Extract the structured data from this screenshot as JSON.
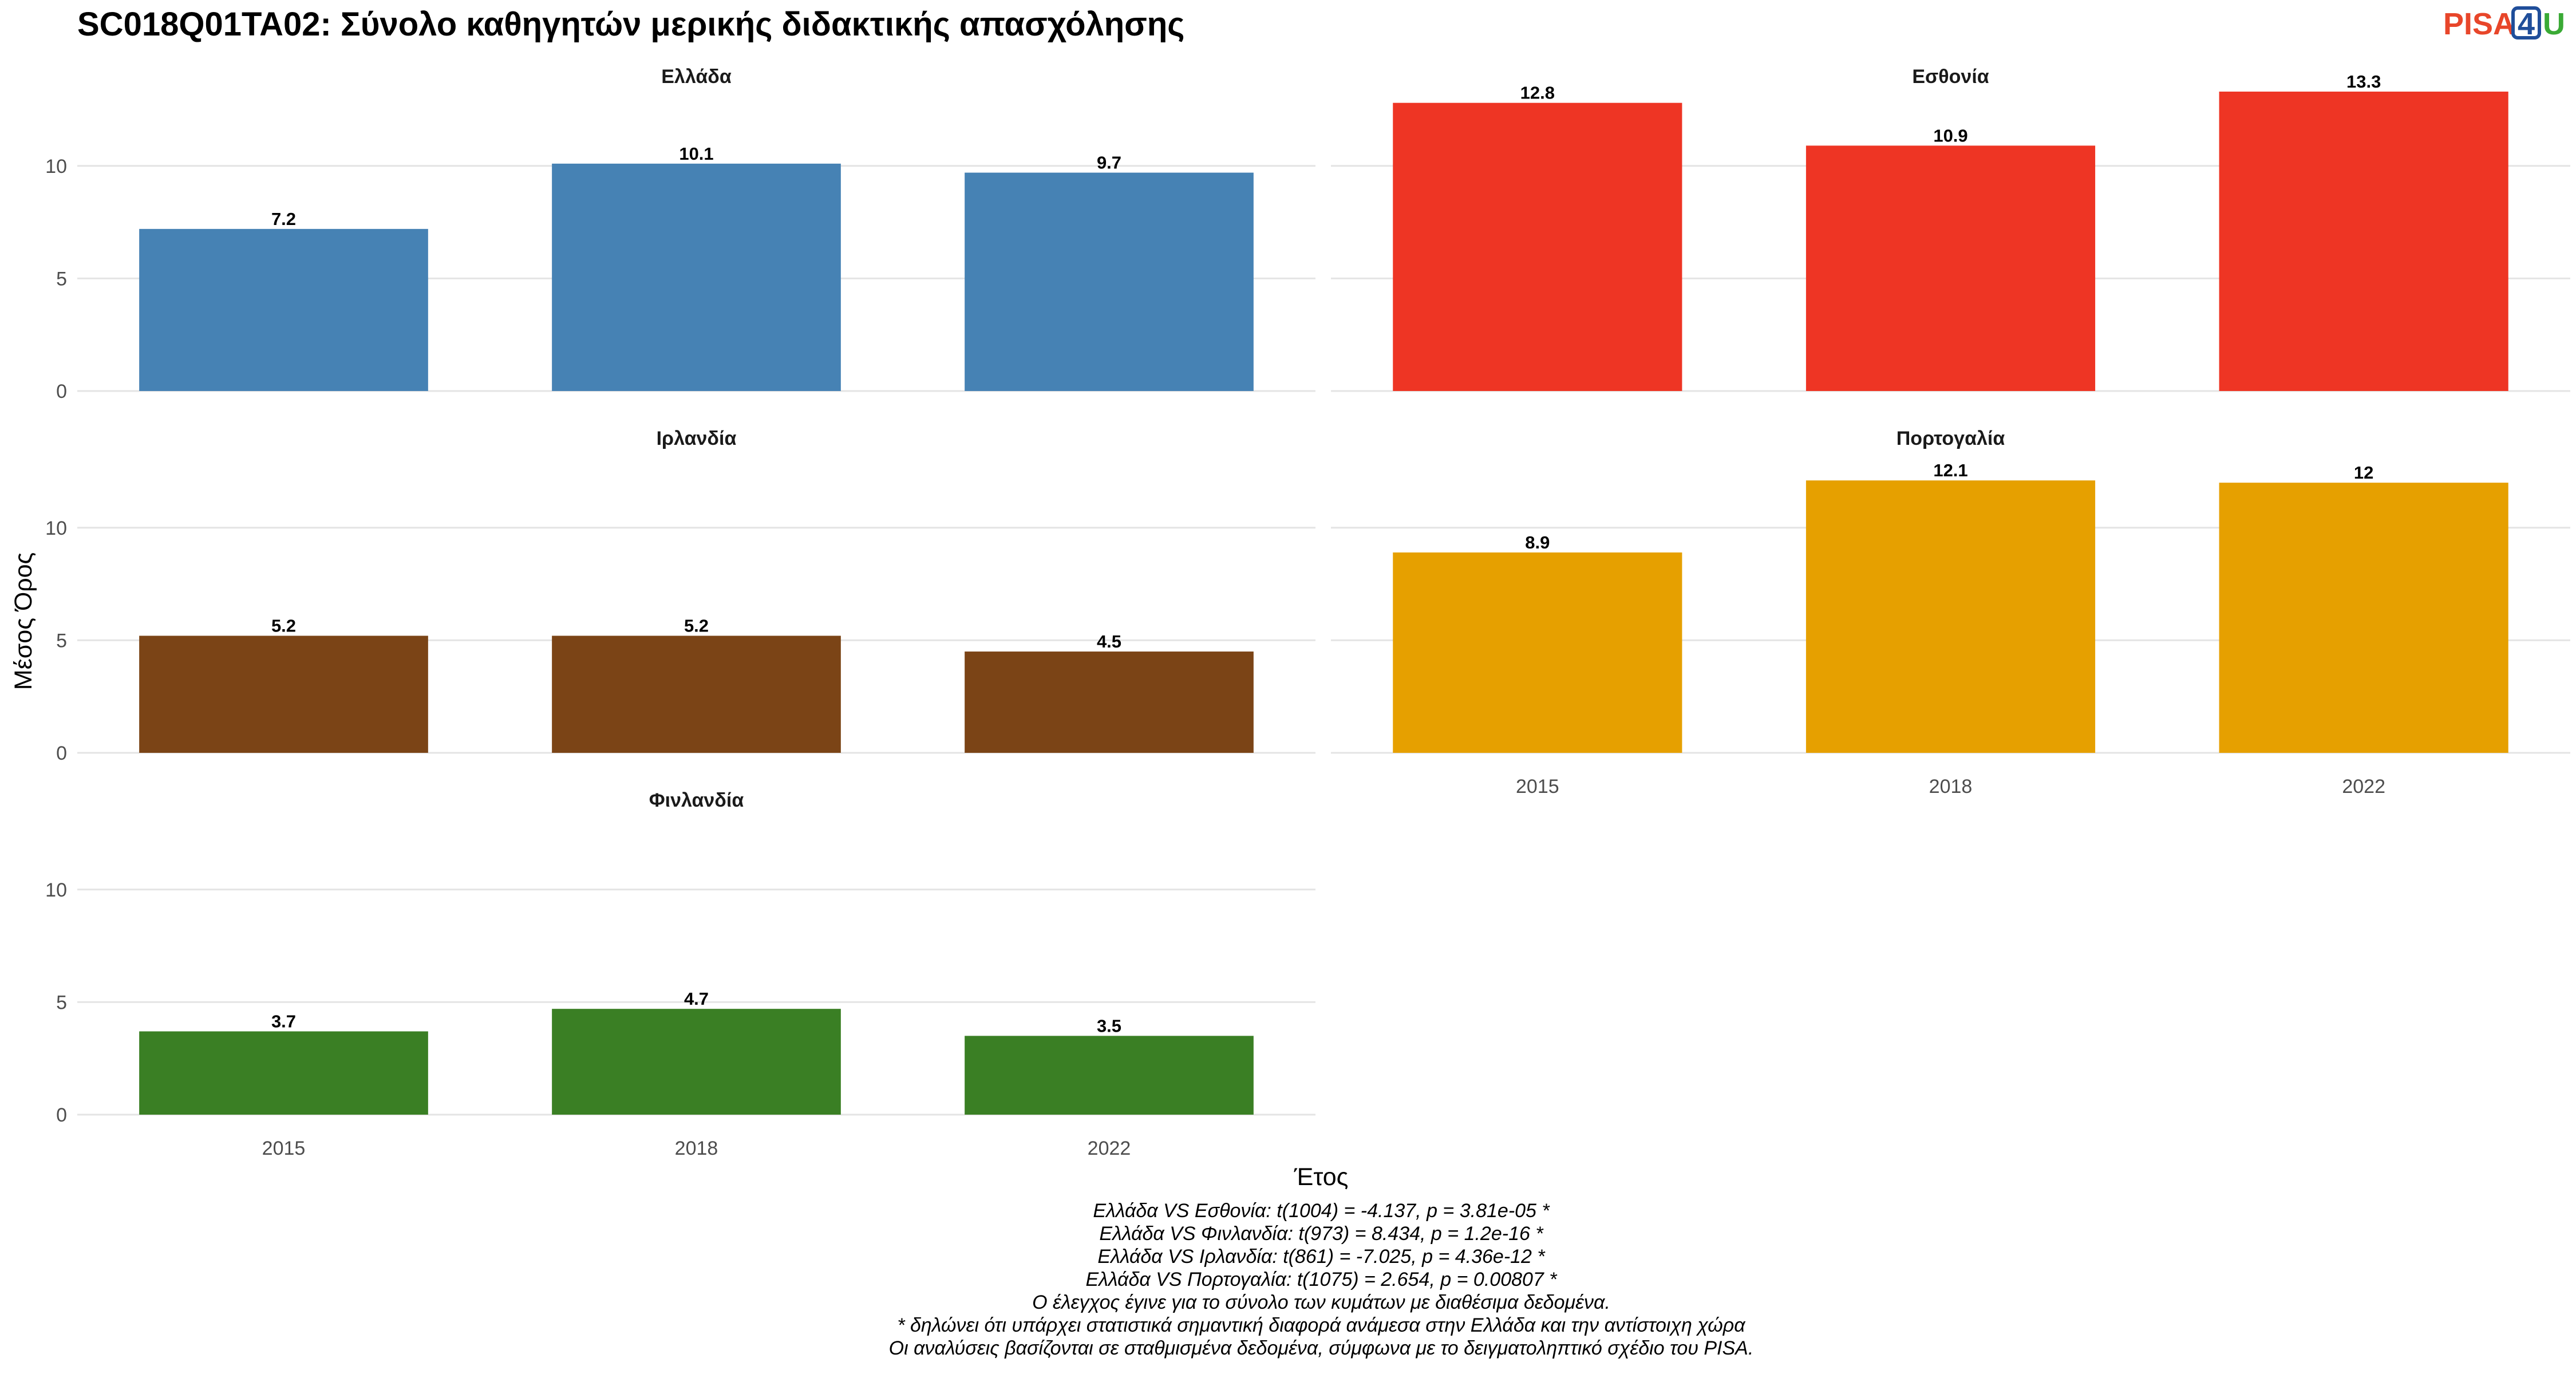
{
  "chart_data": {
    "type": "bar",
    "title": "SC018Q01TA02: Σύνολο καθηγητών μερικής διδακτικής απασχόλησης",
    "xlabel": "Έτος",
    "ylabel": "Μέσος Όρος",
    "ylim": [
      0,
      13.3
    ],
    "yticks": [
      0,
      5,
      10
    ],
    "categories": [
      "2015",
      "2018",
      "2022"
    ],
    "grid": true,
    "facets": [
      {
        "name": "Ελλάδα",
        "color": "#4682B4",
        "values": [
          7.2,
          10.1,
          9.7
        ],
        "labels": [
          "7.2",
          "10.1",
          "9.7"
        ]
      },
      {
        "name": "Εσθονία",
        "color": "#EE3524",
        "values": [
          12.8,
          10.9,
          13.3
        ],
        "labels": [
          "12.8",
          "10.9",
          "13.3"
        ]
      },
      {
        "name": "Ιρλανδία",
        "color": "#7B4416",
        "values": [
          5.2,
          5.2,
          4.5
        ],
        "labels": [
          "5.2",
          "5.2",
          "4.5"
        ]
      },
      {
        "name": "Πορτογαλία",
        "color": "#E6A000",
        "values": [
          8.9,
          12.1,
          12.0
        ],
        "labels": [
          "8.9",
          "12.1",
          "12"
        ]
      },
      {
        "name": "Φινλανδία",
        "color": "#3A7F24",
        "values": [
          3.7,
          4.7,
          3.5
        ],
        "labels": [
          "3.7",
          "4.7",
          "3.5"
        ]
      }
    ],
    "caption": [
      "Ελλάδα VS Εσθονία: t(1004) = -4.137, p = 3.81e-05 *",
      "Ελλάδα VS Φινλανδία: t(973) = 8.434, p = 1.2e-16 *",
      "Ελλάδα VS Ιρλανδία: t(861) = -7.025, p = 4.36e-12 *",
      "Ελλάδα VS Πορτογαλία: t(1075) = 2.654, p = 0.00807 *",
      "Ο έλεγχος έγινε για το σύνολο των κυμάτων με διαθέσιμα δεδομένα.",
      "* δηλώνει ότι υπάρχει στατιστικά σημαντική διαφορά ανάμεσα στην Ελλάδα και την αντίστοιχη χώρα",
      "Οι αναλύσεις βασίζονται σε σταθμισμένα δεδομένα, σύμφωνα με το δειγματοληπτικό σχέδιο του PISA."
    ]
  },
  "logo": {
    "text1": "PISA",
    "text2": "4",
    "text3": "U",
    "color1": "#E8462A",
    "color2": "#1F4E9A",
    "color3": "#3AAA35"
  }
}
